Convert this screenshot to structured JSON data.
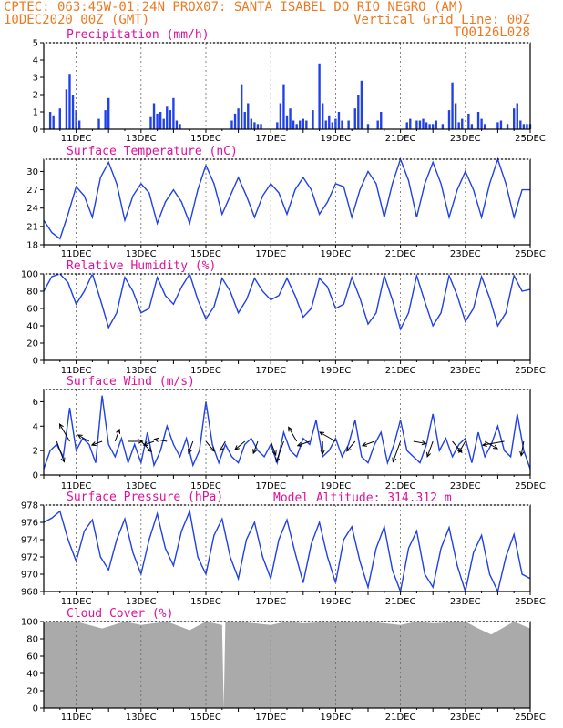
{
  "header": {
    "line1_left": "CPTEC:   063:45W-01:24N   PROX07: SANTA ISABEL DO RIO NEGRO (AM)",
    "line2_left": "10DEC2020 00Z (GMT)",
    "line2_right": "Vertical Grid Line: 00Z",
    "line3_right": "TQ0126L028"
  },
  "colors": {
    "header": "#f07820",
    "title": "#e0109a",
    "series": "#2040e8",
    "cloud": "#aaaaaa",
    "frame": "#000000",
    "grid": "#666666"
  },
  "x_axis": {
    "start_day": 10,
    "end_day": 25,
    "labels": [
      "11DEC",
      "13DEC",
      "15DEC",
      "17DEC",
      "19DEC",
      "21DEC",
      "23DEC",
      "25DEC"
    ],
    "label_days": [
      11,
      13,
      15,
      17,
      19,
      21,
      23,
      25
    ]
  },
  "chart_data": [
    {
      "id": "precip",
      "type": "bar",
      "title": "Precipitation (mm/h)",
      "ylim": [
        0,
        5
      ],
      "yticks": [
        0,
        1,
        2,
        3,
        4,
        5
      ],
      "x": [
        10.2,
        10.3,
        10.5,
        10.7,
        10.8,
        10.9,
        11.0,
        11.1,
        11.7,
        11.9,
        12.0,
        13.3,
        13.4,
        13.5,
        13.6,
        13.7,
        13.8,
        13.9,
        14.0,
        14.1,
        14.2,
        15.8,
        15.9,
        16.0,
        16.1,
        16.2,
        16.3,
        16.4,
        16.5,
        16.6,
        16.7,
        17.2,
        17.3,
        17.4,
        17.5,
        17.6,
        17.7,
        17.8,
        17.9,
        18.0,
        18.1,
        18.3,
        18.5,
        18.6,
        18.7,
        18.8,
        18.9,
        19.0,
        19.1,
        19.2,
        19.4,
        19.6,
        19.7,
        19.8,
        20.0,
        20.3,
        20.4,
        21.2,
        21.3,
        21.5,
        21.6,
        21.7,
        21.8,
        21.9,
        22.0,
        22.1,
        22.3,
        22.5,
        22.6,
        22.7,
        22.8,
        22.9,
        23.1,
        23.2,
        23.4,
        23.5,
        23.6,
        24.0,
        24.1,
        24.3,
        24.5,
        24.6,
        24.7,
        24.8,
        24.9,
        25.0
      ],
      "values": [
        1.0,
        0.8,
        1.2,
        2.3,
        3.2,
        2.0,
        1.1,
        0.5,
        0.6,
        1.1,
        1.8,
        0.7,
        1.5,
        0.9,
        1.0,
        0.6,
        1.3,
        1.1,
        1.8,
        0.5,
        0.3,
        0.5,
        0.9,
        1.2,
        2.6,
        1.0,
        1.5,
        0.6,
        0.4,
        0.3,
        0.3,
        0.4,
        1.5,
        2.6,
        0.8,
        1.2,
        0.5,
        0.3,
        0.5,
        0.6,
        0.5,
        1.1,
        3.8,
        1.5,
        0.5,
        0.8,
        0.4,
        0.6,
        1.0,
        0.5,
        0.5,
        1.2,
        2.0,
        2.8,
        0.3,
        0.5,
        1.0,
        0.4,
        0.6,
        0.5,
        0.5,
        0.6,
        0.4,
        0.3,
        0.3,
        0.5,
        0.3,
        1.1,
        2.7,
        1.5,
        0.4,
        0.6,
        0.9,
        0.3,
        1.0,
        0.6,
        0.3,
        0.4,
        0.5,
        0.3,
        1.2,
        1.5,
        0.5,
        0.3,
        0.3,
        0.3
      ]
    },
    {
      "id": "temp",
      "type": "line",
      "title": "Surface Temperature (nC)",
      "ylim": [
        18,
        32
      ],
      "yticks": [
        18,
        21,
        24,
        27,
        30
      ],
      "x": [
        10.0,
        10.25,
        10.5,
        10.75,
        11.0,
        11.25,
        11.5,
        11.75,
        12.0,
        12.25,
        12.5,
        12.75,
        13.0,
        13.25,
        13.5,
        13.75,
        14.0,
        14.25,
        14.5,
        14.75,
        15.0,
        15.25,
        15.5,
        15.75,
        16.0,
        16.25,
        16.5,
        16.75,
        17.0,
        17.25,
        17.5,
        17.75,
        18.0,
        18.25,
        18.5,
        18.75,
        19.0,
        19.25,
        19.5,
        19.75,
        20.0,
        20.25,
        20.5,
        20.75,
        21.0,
        21.25,
        21.5,
        21.75,
        22.0,
        22.25,
        22.5,
        22.75,
        23.0,
        23.25,
        23.5,
        23.75,
        24.0,
        24.25,
        24.5,
        24.75,
        25.0
      ],
      "values": [
        22,
        20,
        19,
        23,
        27.5,
        26,
        22.5,
        29,
        31.5,
        28,
        22,
        26,
        28,
        26.5,
        21.5,
        25,
        27,
        25,
        21.5,
        27,
        31,
        28,
        23,
        26,
        29,
        26,
        22.5,
        26,
        28,
        26.5,
        23,
        27,
        29,
        27,
        23,
        25,
        28,
        27.5,
        22.5,
        27,
        30,
        28,
        22.5,
        28,
        32,
        28.5,
        22.5,
        28,
        31.5,
        28,
        22.5,
        27,
        30,
        27,
        22.5,
        28,
        32,
        28,
        22.5,
        27,
        27
      ]
    },
    {
      "id": "rh",
      "type": "line",
      "title": "Relative Humidity (%)",
      "ylim": [
        0,
        100
      ],
      "yticks": [
        0,
        20,
        40,
        60,
        80,
        100
      ],
      "x": [
        10.0,
        10.25,
        10.5,
        10.75,
        11.0,
        11.25,
        11.5,
        11.75,
        12.0,
        12.25,
        12.5,
        12.75,
        13.0,
        13.25,
        13.5,
        13.75,
        14.0,
        14.25,
        14.5,
        14.75,
        15.0,
        15.25,
        15.5,
        15.75,
        16.0,
        16.25,
        16.5,
        16.75,
        17.0,
        17.25,
        17.5,
        17.75,
        18.0,
        18.25,
        18.5,
        18.75,
        19.0,
        19.25,
        19.5,
        19.75,
        20.0,
        20.25,
        20.5,
        20.75,
        21.0,
        21.25,
        21.5,
        21.75,
        22.0,
        22.25,
        22.5,
        22.75,
        23.0,
        23.25,
        23.5,
        23.75,
        24.0,
        24.25,
        24.5,
        24.75,
        25.0
      ],
      "values": [
        80,
        97,
        100,
        90,
        65,
        80,
        100,
        70,
        38,
        55,
        96,
        80,
        55,
        60,
        96,
        75,
        65,
        85,
        100,
        70,
        48,
        62,
        95,
        80,
        55,
        70,
        95,
        80,
        70,
        75,
        95,
        75,
        50,
        60,
        95,
        85,
        60,
        65,
        96,
        72,
        42,
        55,
        98,
        70,
        36,
        55,
        98,
        68,
        40,
        55,
        98,
        75,
        45,
        60,
        97,
        72,
        40,
        55,
        98,
        80,
        82
      ]
    },
    {
      "id": "wind",
      "type": "line",
      "title": "Surface Wind (m/s)",
      "ylim": [
        0,
        7
      ],
      "yticks": [
        0,
        2,
        4,
        6
      ],
      "x": [
        10.0,
        10.2,
        10.4,
        10.6,
        10.8,
        11.0,
        11.2,
        11.4,
        11.6,
        11.8,
        12.0,
        12.2,
        12.4,
        12.6,
        12.8,
        13.0,
        13.2,
        13.4,
        13.6,
        13.8,
        14.0,
        14.2,
        14.4,
        14.6,
        14.8,
        15.0,
        15.2,
        15.4,
        15.6,
        15.8,
        16.0,
        16.2,
        16.4,
        16.6,
        16.8,
        17.0,
        17.2,
        17.4,
        17.6,
        17.8,
        18.0,
        18.2,
        18.4,
        18.6,
        18.8,
        19.0,
        19.2,
        19.4,
        19.6,
        19.8,
        20.0,
        20.2,
        20.4,
        20.6,
        20.8,
        21.0,
        21.2,
        21.4,
        21.6,
        21.8,
        22.0,
        22.2,
        22.4,
        22.6,
        22.8,
        23.0,
        23.2,
        23.4,
        23.6,
        23.8,
        24.0,
        24.2,
        24.4,
        24.6,
        24.8,
        25.0
      ],
      "values": [
        0.5,
        2.0,
        2.5,
        1.5,
        5.5,
        2.0,
        3.0,
        2.5,
        1.0,
        6.5,
        2.5,
        1.5,
        3.0,
        1.0,
        2.5,
        1.0,
        3.5,
        0.8,
        2.0,
        4.0,
        2.5,
        1.5,
        3.0,
        0.8,
        2.0,
        6.0,
        2.5,
        1.0,
        2.5,
        1.5,
        1.0,
        2.5,
        3.0,
        2.0,
        1.5,
        2.5,
        1.0,
        3.5,
        2.0,
        1.5,
        3.0,
        2.5,
        4.5,
        1.5,
        2.0,
        3.0,
        1.5,
        2.5,
        4.5,
        1.5,
        1.0,
        2.5,
        3.5,
        1.0,
        2.5,
        4.5,
        2.0,
        1.5,
        1.0,
        2.5,
        5.0,
        2.0,
        3.0,
        1.5,
        2.5,
        3.0,
        1.0,
        3.5,
        1.5,
        2.5,
        4.0,
        2.0,
        1.5,
        5.0,
        2.0,
        0.5
      ]
    },
    {
      "id": "pres",
      "type": "line",
      "title": "Surface Pressure (hPa)",
      "ylim": [
        968,
        978
      ],
      "yticks": [
        968,
        970,
        972,
        974,
        976,
        978
      ],
      "x": [
        10.0,
        10.25,
        10.5,
        10.75,
        11.0,
        11.25,
        11.5,
        11.75,
        12.0,
        12.25,
        12.5,
        12.75,
        13.0,
        13.25,
        13.5,
        13.75,
        14.0,
        14.25,
        14.5,
        14.75,
        15.0,
        15.25,
        15.5,
        15.75,
        16.0,
        16.25,
        16.5,
        16.75,
        17.0,
        17.25,
        17.5,
        17.75,
        18.0,
        18.25,
        18.5,
        18.75,
        19.0,
        19.25,
        19.5,
        19.75,
        20.0,
        20.25,
        20.5,
        20.75,
        21.0,
        21.25,
        21.5,
        21.75,
        22.0,
        22.25,
        22.5,
        22.75,
        23.0,
        23.25,
        23.5,
        23.75,
        24.0,
        24.25,
        24.5,
        24.75,
        25.0
      ],
      "values": [
        976,
        976.5,
        977.3,
        974,
        971.5,
        975,
        976.3,
        972,
        970.5,
        974,
        976.4,
        972.5,
        970,
        974,
        977,
        973,
        971,
        975,
        977.3,
        972,
        970,
        974.5,
        976.4,
        972,
        969.5,
        974,
        976,
        972,
        969.5,
        974,
        976.3,
        972.5,
        969,
        973.5,
        976,
        972,
        969,
        974,
        975.5,
        971.5,
        968.5,
        973,
        975.5,
        970.5,
        968,
        973,
        975,
        970,
        968.5,
        973,
        975.4,
        971,
        968,
        972.5,
        974.5,
        970,
        968,
        972,
        974.6,
        970,
        969.5
      ]
    },
    {
      "id": "cloud",
      "type": "area",
      "title": "Cloud Cover (%)",
      "ylim": [
        0,
        100
      ],
      "yticks": [
        0,
        20,
        40,
        60,
        80,
        100
      ],
      "x": [
        10.0,
        11.0,
        11.8,
        12.5,
        13.0,
        13.8,
        14.5,
        15.0,
        15.5,
        15.55,
        15.6,
        16.0,
        17.0,
        17.5,
        18.0,
        19.0,
        20.0,
        21.0,
        21.5,
        22.0,
        23.0,
        23.4,
        23.8,
        24.5,
        25.0
      ],
      "values": [
        100,
        100,
        92,
        100,
        96,
        100,
        90,
        100,
        96,
        0,
        100,
        100,
        96,
        100,
        98,
        100,
        100,
        96,
        100,
        98,
        100,
        92,
        85,
        100,
        92
      ]
    }
  ],
  "model_altitude": "Model Altitude: 314.312 m",
  "wind_arrows": [
    {
      "day": 10.4,
      "dir": 160,
      "len": 24
    },
    {
      "day": 10.8,
      "dir": 330,
      "len": 22
    },
    {
      "day": 11.4,
      "dir": 300,
      "len": 14
    },
    {
      "day": 11.8,
      "dir": 250,
      "len": 12
    },
    {
      "day": 12.2,
      "dir": 20,
      "len": 14
    },
    {
      "day": 12.6,
      "dir": 90,
      "len": 16
    },
    {
      "day": 13.0,
      "dir": 135,
      "len": 16
    },
    {
      "day": 13.4,
      "dir": 250,
      "len": 12
    },
    {
      "day": 13.8,
      "dir": 280,
      "len": 14
    },
    {
      "day": 14.6,
      "dir": 200,
      "len": 14
    },
    {
      "day": 15.0,
      "dir": 140,
      "len": 14
    },
    {
      "day": 15.6,
      "dir": 210,
      "len": 12
    },
    {
      "day": 16.2,
      "dir": 230,
      "len": 14
    },
    {
      "day": 16.6,
      "dir": 200,
      "len": 14
    },
    {
      "day": 17.0,
      "dir": 160,
      "len": 16
    },
    {
      "day": 17.4,
      "dir": 200,
      "len": 24
    },
    {
      "day": 17.8,
      "dir": 330,
      "len": 18
    },
    {
      "day": 18.2,
      "dir": 250,
      "len": 14
    },
    {
      "day": 18.6,
      "dir": 180,
      "len": 14
    },
    {
      "day": 19.0,
      "dir": 300,
      "len": 20
    },
    {
      "day": 19.6,
      "dir": 220,
      "len": 14
    },
    {
      "day": 20.2,
      "dir": 250,
      "len": 14
    },
    {
      "day": 21.0,
      "dir": 200,
      "len": 24
    },
    {
      "day": 21.4,
      "dir": 100,
      "len": 14
    },
    {
      "day": 22.0,
      "dir": 200,
      "len": 18
    },
    {
      "day": 22.6,
      "dir": 140,
      "len": 16
    },
    {
      "day": 23.0,
      "dir": 210,
      "len": 14
    },
    {
      "day": 23.6,
      "dir": 120,
      "len": 16
    },
    {
      "day": 24.2,
      "dir": 260,
      "len": 24
    },
    {
      "day": 24.8,
      "dir": 190,
      "len": 16
    }
  ]
}
